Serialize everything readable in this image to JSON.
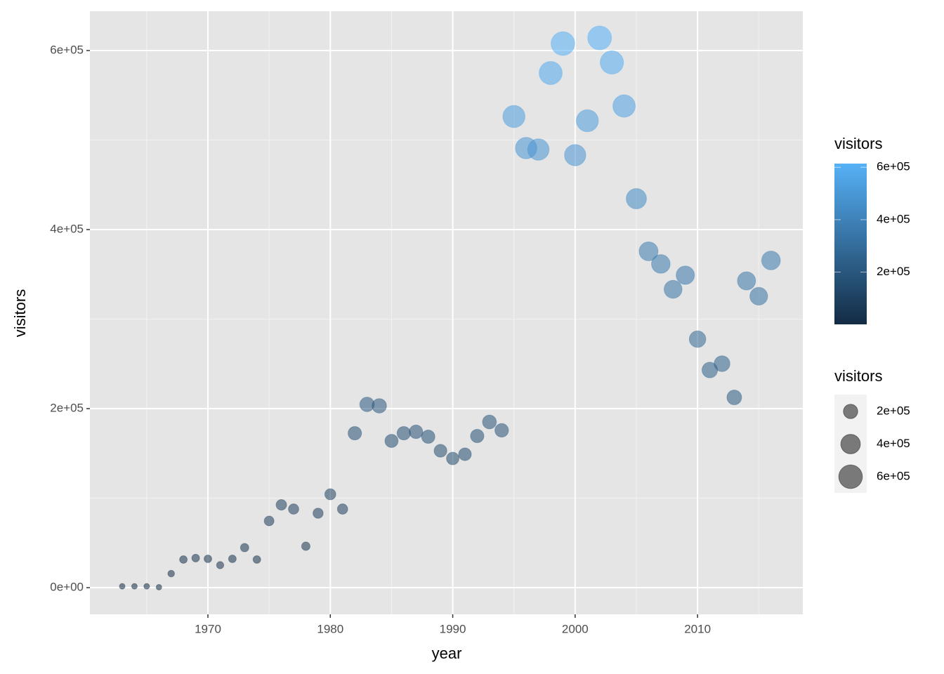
{
  "chart_data": {
    "type": "scatter",
    "x_label": "year",
    "y_label": "visitors",
    "x": [
      1963,
      1964,
      1965,
      1966,
      1967,
      1968,
      1969,
      1970,
      1971,
      1972,
      1973,
      1974,
      1975,
      1976,
      1977,
      1978,
      1979,
      1980,
      1981,
      1982,
      1983,
      1984,
      1985,
      1986,
      1987,
      1988,
      1989,
      1990,
      1991,
      1992,
      1993,
      1994,
      1995,
      1996,
      1997,
      1998,
      1999,
      2000,
      2001,
      2002,
      2003,
      2004,
      2005,
      2006,
      2007,
      2008,
      2009,
      2010,
      2011,
      2012,
      2013,
      2014,
      2015,
      2016
    ],
    "values": [
      1500,
      1500,
      1500,
      500,
      15700,
      31400,
      33000,
      32200,
      25100,
      32200,
      44700,
      31400,
      74500,
      92500,
      87800,
      46300,
      83100,
      104300,
      87800,
      172500,
      204700,
      203100,
      163900,
      172500,
      174100,
      168600,
      152900,
      144300,
      149000,
      169400,
      185100,
      175700,
      526300,
      491000,
      489400,
      574900,
      607800,
      483100,
      521600,
      614100,
      586700,
      538000,
      434500,
      375700,
      361600,
      333300,
      349000,
      277600,
      243100,
      250200,
      212500,
      342700,
      325500,
      365500
    ],
    "xlim": [
      1960.36,
      2018.6
    ],
    "xticks": [
      1970,
      1980,
      1990,
      2000,
      2010
    ],
    "ylim": [
      -29800,
      643900
    ],
    "yticks": [
      {
        "value": 0,
        "label": "0e+00"
      },
      {
        "value": 200000,
        "label": "2e+05"
      },
      {
        "value": 400000,
        "label": "4e+05"
      },
      {
        "value": 600000,
        "label": "6e+05"
      }
    ],
    "grid": true,
    "low_color": "#132B43",
    "high_color": "#56B1F7",
    "color_legend": {
      "title": "visitors",
      "ticks": [
        {
          "value": 200000,
          "label": "2e+05"
        },
        {
          "value": 400000,
          "label": "4e+05"
        },
        {
          "value": 600000,
          "label": "6e+05"
        }
      ]
    },
    "size_legend": {
      "title": "visitors",
      "ticks": [
        {
          "value": 200000,
          "label": "2e+05"
        },
        {
          "value": 400000,
          "label": "4e+05"
        },
        {
          "value": 600000,
          "label": "6e+05"
        }
      ]
    }
  }
}
